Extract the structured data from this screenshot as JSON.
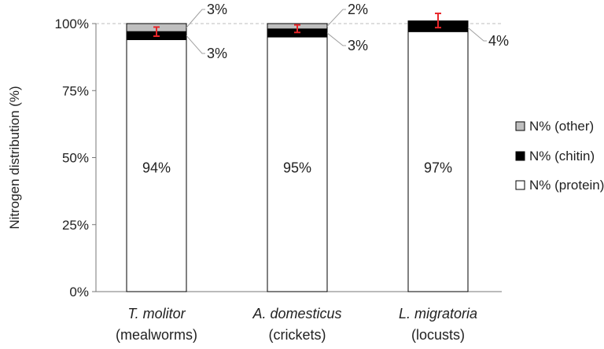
{
  "chart_data": {
    "type": "bar",
    "stacked": true,
    "ylabel": "Nitrogen distribution (%)",
    "ylim": [
      0,
      100
    ],
    "yticks": [
      "0%",
      "25%",
      "50%",
      "75%",
      "100%"
    ],
    "reference_line": {
      "y": 100,
      "style": "dashed"
    },
    "categories": [
      {
        "italic": "T. molitor",
        "common": "(mealworms)"
      },
      {
        "italic": "A. domesticus",
        "common": "(crickets)"
      },
      {
        "italic": "L. migratoria",
        "common": "(locusts)"
      }
    ],
    "series": [
      {
        "name": "N% (protein)",
        "color": "#ffffff",
        "values": [
          94,
          95,
          97
        ]
      },
      {
        "name": "N% (chitin)",
        "color": "#000000",
        "values": [
          3,
          3,
          4
        ]
      },
      {
        "name": "N% (other)",
        "color": "#bfbfbf",
        "values": [
          3,
          2,
          0
        ]
      }
    ],
    "error_bars": [
      {
        "center": 97,
        "low": 95.3,
        "high": 98.7
      },
      {
        "center": 98,
        "low": 96.7,
        "high": 99.5
      },
      {
        "center": 101,
        "low": 98.5,
        "high": 103.8
      }
    ],
    "error_color": "#e8262a",
    "labels": {
      "protein": [
        "94%",
        "95%",
        "97%"
      ],
      "other": [
        "3%",
        "2%",
        null
      ],
      "chitin": [
        "3%",
        "3%",
        "4%"
      ]
    },
    "legend": {
      "placement": "right",
      "order": [
        "N% (other)",
        "N% (chitin)",
        "N% (protein)"
      ]
    }
  }
}
